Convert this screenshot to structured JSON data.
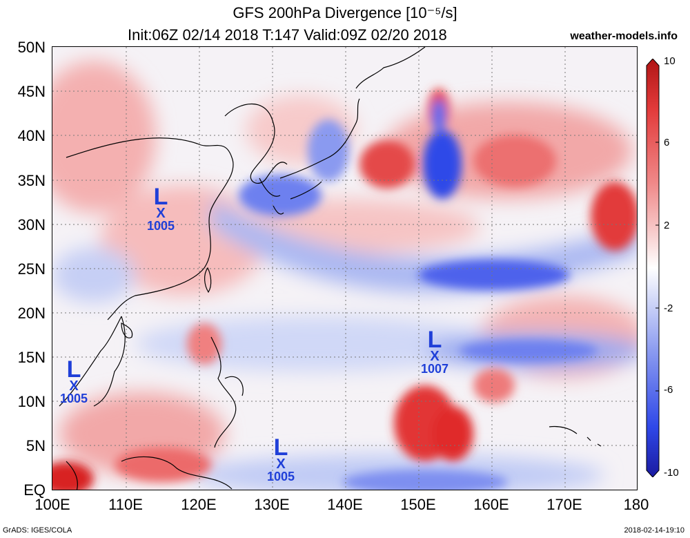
{
  "header": {
    "title": "GFS 200hPa Divergence [10⁻⁵/s]",
    "subtitle": "Init:06Z 02/14 2018 T:147 Valid:09Z 02/20 2018",
    "site": "weather-models.info"
  },
  "axes": {
    "lat_labels": [
      "50N",
      "45N",
      "40N",
      "35N",
      "30N",
      "25N",
      "20N",
      "15N",
      "10N",
      "5N",
      "EQ"
    ],
    "lon_labels": [
      "100E",
      "110E",
      "120E",
      "130E",
      "140E",
      "150E",
      "160E",
      "170E",
      "180"
    ]
  },
  "colorbar": {
    "ticks": [
      "10",
      "6",
      "2",
      "-2",
      "-6",
      "-10"
    ],
    "colors": [
      "#b01515",
      "#e23a3a",
      "#f08a8a",
      "#f8cfcf",
      "#ffffff",
      "#cfd6f8",
      "#8a9af0",
      "#2f48e8",
      "#1a1aa0"
    ]
  },
  "lows": [
    {
      "symbol": "L",
      "mark": "X",
      "pressure": "1005"
    },
    {
      "symbol": "L",
      "mark": "X",
      "pressure": "1005"
    },
    {
      "symbol": "L",
      "mark": "X",
      "pressure": "1007"
    },
    {
      "symbol": "L",
      "mark": "X",
      "pressure": "1005"
    }
  ],
  "footer": {
    "left": "GrADS: IGES/COLA",
    "right": "2018-02-14-19:10"
  }
}
